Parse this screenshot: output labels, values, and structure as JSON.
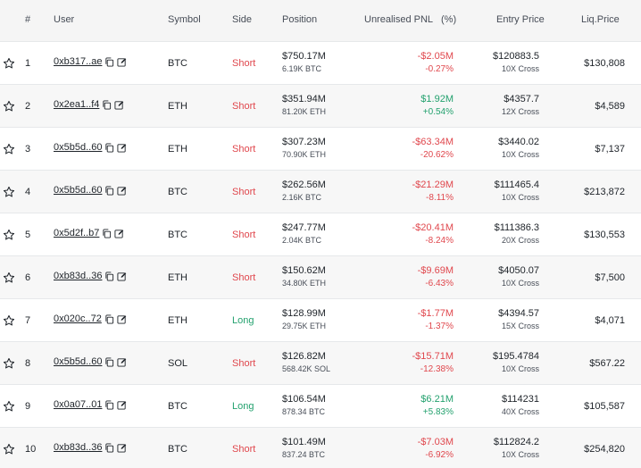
{
  "header": {
    "rank": "#",
    "user": "User",
    "symbol": "Symbol",
    "side": "Side",
    "position": "Position",
    "pnl": "Unrealised PNL",
    "pct": "(%)",
    "entry": "Entry Price",
    "liq": "Liq.Price"
  },
  "rows": [
    {
      "rank": "1",
      "user": "0xb317..ae",
      "symbol": "BTC",
      "side": "Short",
      "position": "$750.17M",
      "size": "6.19K BTC",
      "pnl": "-$2.05M",
      "pnl_pct": "-0.27%",
      "entry": "$120883.5",
      "leverage": "10X Cross",
      "liq": "$130,808"
    },
    {
      "rank": "2",
      "user": "0x2ea1..f4",
      "symbol": "ETH",
      "side": "Short",
      "position": "$351.94M",
      "size": "81.20K ETH",
      "pnl": "$1.92M",
      "pnl_pct": "+0.54%",
      "entry": "$4357.7",
      "leverage": "12X Cross",
      "liq": "$4,589"
    },
    {
      "rank": "3",
      "user": "0x5b5d..60",
      "symbol": "ETH",
      "side": "Short",
      "position": "$307.23M",
      "size": "70.90K ETH",
      "pnl": "-$63.34M",
      "pnl_pct": "-20.62%",
      "entry": "$3440.02",
      "leverage": "10X Cross",
      "liq": "$7,137"
    },
    {
      "rank": "4",
      "user": "0x5b5d..60",
      "symbol": "BTC",
      "side": "Short",
      "position": "$262.56M",
      "size": "2.16K BTC",
      "pnl": "-$21.29M",
      "pnl_pct": "-8.11%",
      "entry": "$111465.4",
      "leverage": "10X Cross",
      "liq": "$213,872"
    },
    {
      "rank": "5",
      "user": "0x5d2f..b7",
      "symbol": "BTC",
      "side": "Short",
      "position": "$247.77M",
      "size": "2.04K BTC",
      "pnl": "-$20.41M",
      "pnl_pct": "-8.24%",
      "entry": "$111386.3",
      "leverage": "20X Cross",
      "liq": "$130,553"
    },
    {
      "rank": "6",
      "user": "0xb83d..36",
      "symbol": "ETH",
      "side": "Short",
      "position": "$150.62M",
      "size": "34.80K ETH",
      "pnl": "-$9.69M",
      "pnl_pct": "-6.43%",
      "entry": "$4050.07",
      "leverage": "10X Cross",
      "liq": "$7,500"
    },
    {
      "rank": "7",
      "user": "0x020c..72",
      "symbol": "ETH",
      "side": "Long",
      "position": "$128.99M",
      "size": "29.75K ETH",
      "pnl": "-$1.77M",
      "pnl_pct": "-1.37%",
      "entry": "$4394.57",
      "leverage": "15X Cross",
      "liq": "$4,071"
    },
    {
      "rank": "8",
      "user": "0x5b5d..60",
      "symbol": "SOL",
      "side": "Short",
      "position": "$126.82M",
      "size": "568.42K SOL",
      "pnl": "-$15.71M",
      "pnl_pct": "-12.38%",
      "entry": "$195.4784",
      "leverage": "10X Cross",
      "liq": "$567.22"
    },
    {
      "rank": "9",
      "user": "0x0a07..01",
      "symbol": "BTC",
      "side": "Long",
      "position": "$106.54M",
      "size": "878.34 BTC",
      "pnl": "$6.21M",
      "pnl_pct": "+5.83%",
      "entry": "$114231",
      "leverage": "40X Cross",
      "liq": "$105,587"
    },
    {
      "rank": "10",
      "user": "0xb83d..36",
      "symbol": "BTC",
      "side": "Short",
      "position": "$101.49M",
      "size": "837.24 BTC",
      "pnl": "-$7.03M",
      "pnl_pct": "-6.92%",
      "entry": "$112824.2",
      "leverage": "10X Cross",
      "liq": "$254,820"
    }
  ],
  "colors": {
    "short": "#e0474d",
    "long": "#23a16e",
    "negative": "#e0474d",
    "positive": "#23a16e"
  },
  "icons": {
    "star": "star-outline-icon",
    "copy": "copy-icon",
    "edit": "edit-icon"
  }
}
